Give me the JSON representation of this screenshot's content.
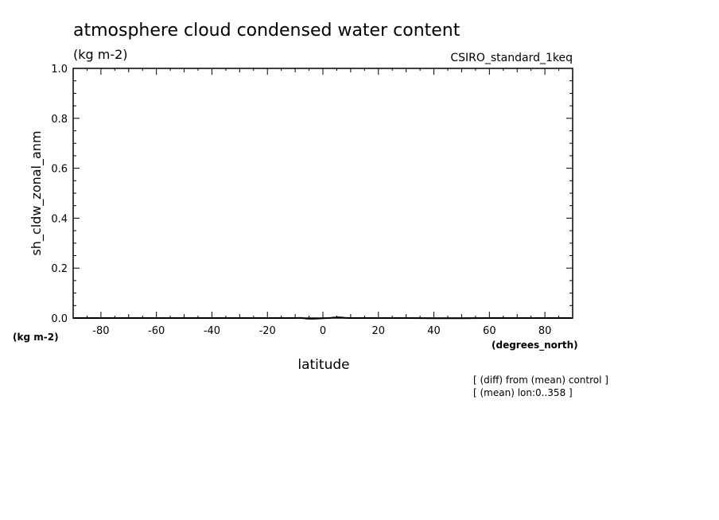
{
  "chart_data": {
    "type": "line",
    "title": "atmosphere cloud condensed water content",
    "subtitle_units": "(kg m-2)",
    "run_label": "CSIRO_standard_1keq",
    "ylabel": "sh_cldw_zonal_anm",
    "yunits": "(kg m-2)",
    "xlabel": "latitude",
    "xunits": "(degrees_north)",
    "xlim": [
      -90,
      90
    ],
    "ylim": [
      0.0,
      1.0
    ],
    "xticks": [
      -80,
      -60,
      -40,
      -20,
      0,
      20,
      40,
      60,
      80
    ],
    "yticks": [
      0.0,
      0.2,
      0.4,
      0.6,
      0.8,
      1.0
    ],
    "ytick_labels": [
      "0.0",
      "0.2",
      "0.4",
      "0.6",
      "0.8",
      "1.0"
    ],
    "grid": false,
    "series": [
      {
        "x": [
          -90,
          -80,
          -70,
          -60,
          -50,
          -40,
          -30,
          -20,
          -10,
          -8,
          -6,
          -4,
          -2,
          0,
          2,
          4,
          6,
          8,
          10,
          20,
          30,
          40,
          50,
          60,
          70,
          80,
          90
        ],
        "y": [
          0.0,
          0.0,
          0.0,
          0.0,
          0.0,
          0.0,
          0.0,
          0.0,
          0.0,
          0.001,
          -0.002,
          -0.003,
          -0.002,
          -0.001,
          0.0,
          0.002,
          0.003,
          0.001,
          0.0,
          0.0,
          0.0,
          -0.001,
          -0.001,
          0.0,
          0.0,
          0.0,
          0.0
        ]
      }
    ],
    "notes": [
      "[ (diff) from (mean) control ]",
      "[ (mean) lon:0..358 ]"
    ]
  }
}
